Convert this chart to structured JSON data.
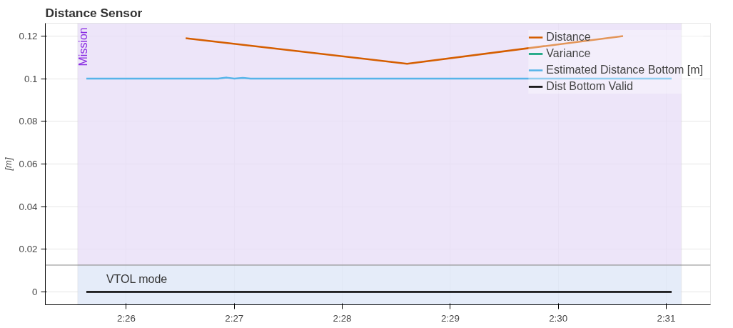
{
  "chart_data": {
    "type": "line",
    "title": "Distance Sensor",
    "ylabel": "[m]",
    "xlim": [
      145.25,
      151.41
    ],
    "ylim": [
      -0.006,
      0.126
    ],
    "xticks": [
      {
        "value": 146,
        "label": "2:26"
      },
      {
        "value": 147,
        "label": "2:27"
      },
      {
        "value": 148,
        "label": "2:28"
      },
      {
        "value": 149,
        "label": "2:29"
      },
      {
        "value": 150,
        "label": "2:30"
      },
      {
        "value": 151,
        "label": "2:31"
      }
    ],
    "yticks": [
      0,
      0.02,
      0.04,
      0.06,
      0.08,
      0.1,
      0.12
    ],
    "grid": true,
    "legend": "top right",
    "ref_lines": [
      {
        "axis": "y",
        "value": 0.0126,
        "color": "#888888"
      }
    ],
    "bands": [
      {
        "axis": "x",
        "from": 145.55,
        "to": 151.14,
        "label": "Mission",
        "color": "#e9dff7"
      },
      {
        "axis": "x",
        "from": 145.55,
        "to": 151.14,
        "label": "VTOL mode",
        "color": "#dfe7f8"
      }
    ],
    "series": [
      {
        "name": "Distance",
        "color": "#d55e00",
        "x": [
          146.55,
          148.6,
          150.6
        ],
        "values": [
          0.119,
          0.107,
          0.12
        ]
      },
      {
        "name": "Variance",
        "color": "#009e73"
      },
      {
        "name": "Estimated Distance Bottom [m]",
        "color": "#56b4e9",
        "x": [
          145.63,
          146.85,
          146.93,
          147.0,
          147.08,
          147.15,
          151.05
        ],
        "values": [
          0.1,
          0.1,
          0.1005,
          0.1,
          0.1004,
          0.1,
          0.1
        ]
      },
      {
        "name": "Dist Bottom Valid",
        "color": "#000000",
        "x": [
          145.63,
          151.05
        ],
        "values": [
          0,
          0
        ]
      }
    ]
  }
}
